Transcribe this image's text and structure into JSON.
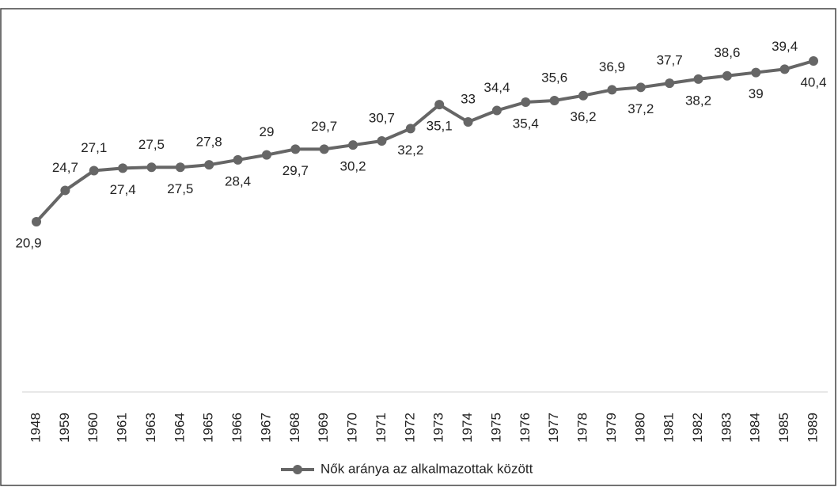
{
  "chart_data": {
    "type": "line",
    "categories": [
      "1948",
      "1959",
      "1960",
      "1961",
      "1963",
      "1964",
      "1965",
      "1966",
      "1967",
      "1968",
      "1969",
      "1970",
      "1971",
      "1972",
      "1973",
      "1974",
      "1975",
      "1976",
      "1977",
      "1978",
      "1979",
      "1980",
      "1981",
      "1982",
      "1983",
      "1984",
      "1985",
      "1989"
    ],
    "series": [
      {
        "name": "Nők aránya az alkalmazottak között",
        "color": "#666666",
        "values": [
          20.9,
          24.7,
          27.1,
          27.4,
          27.5,
          27.5,
          27.8,
          28.4,
          29,
          29.7,
          29.7,
          30.2,
          30.7,
          32.2,
          35.1,
          33,
          34.4,
          35.4,
          35.6,
          36.2,
          36.9,
          37.2,
          37.7,
          38.2,
          38.6,
          39,
          39.4,
          40.4
        ],
        "value_labels": [
          "20,9",
          "24,7",
          "27,1",
          "27,4",
          "27,5",
          "27,5",
          "27,8",
          "28,4",
          "29",
          "29,7",
          "29,7",
          "30,2",
          "30,7",
          "32,2",
          "35,1",
          "33",
          "34,4",
          "35,4",
          "35,6",
          "36,2",
          "36,9",
          "37,2",
          "37,7",
          "38,2",
          "38,6",
          "39",
          "39,4",
          "40,4"
        ]
      }
    ],
    "legend": "bottom"
  }
}
